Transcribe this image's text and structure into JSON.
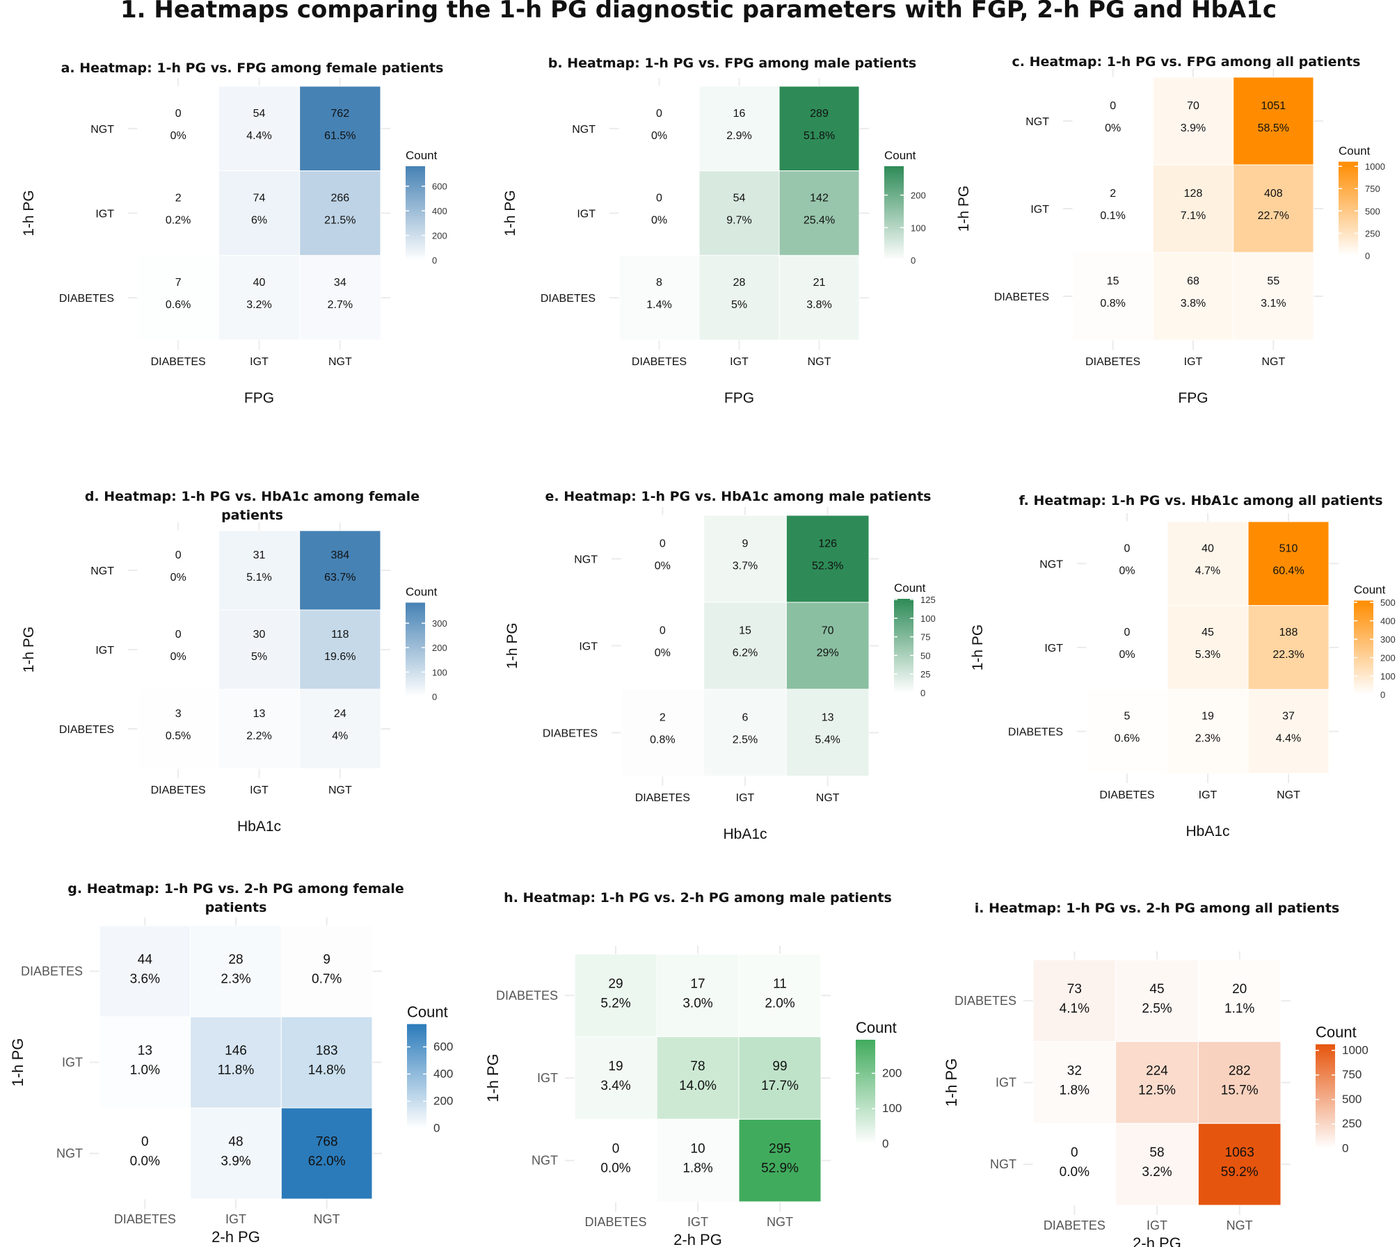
{
  "title": "1. Heatmaps comparing the 1-h PG diagnostic parameters with FGP, 2-h PG and HbA1c",
  "chart_data": [
    {
      "type": "heatmap",
      "title_lines": [
        "a. Heatmap: 1-h PG vs. FPG among female patients"
      ],
      "xlabel": "FPG",
      "ylabel": "1-h PG",
      "x_categories": [
        "DIABETES",
        "IGT",
        "NGT"
      ],
      "y_categories": [
        "NGT",
        "IGT",
        "DIABETES"
      ],
      "values": [
        [
          0,
          54,
          762
        ],
        [
          2,
          74,
          266
        ],
        [
          7,
          40,
          34
        ]
      ],
      "percent_labels": [
        [
          "0%",
          "4.4%",
          "61.5%"
        ],
        [
          "0.2%",
          "6%",
          "21.5%"
        ],
        [
          "0.6%",
          "3.2%",
          "2.7%"
        ]
      ],
      "legend_title": "Count",
      "legend_ticks": [
        0,
        200,
        400,
        600
      ],
      "scale_max": 762,
      "color_high": "#4682b4",
      "color_low": "#ffffff"
    },
    {
      "type": "heatmap",
      "title_lines": [
        "b. Heatmap: 1-h PG vs. FPG among male patients"
      ],
      "xlabel": "FPG",
      "ylabel": "1-h PG",
      "x_categories": [
        "DIABETES",
        "IGT",
        "NGT"
      ],
      "y_categories": [
        "NGT",
        "IGT",
        "DIABETES"
      ],
      "values": [
        [
          0,
          16,
          289
        ],
        [
          0,
          54,
          142
        ],
        [
          8,
          28,
          21
        ]
      ],
      "percent_labels": [
        [
          "0%",
          "2.9%",
          "51.8%"
        ],
        [
          "0%",
          "9.7%",
          "25.4%"
        ],
        [
          "1.4%",
          "5%",
          "3.8%"
        ]
      ],
      "legend_title": "Count",
      "legend_ticks": [
        0,
        100,
        200
      ],
      "scale_max": 289,
      "color_high": "#2e8b57",
      "color_low": "#ffffff"
    },
    {
      "type": "heatmap",
      "title_lines": [
        "c. Heatmap: 1-h PG vs. FPG among all patients"
      ],
      "xlabel": "FPG",
      "ylabel": "1-h PG",
      "x_categories": [
        "DIABETES",
        "IGT",
        "NGT"
      ],
      "y_categories": [
        "NGT",
        "IGT",
        "DIABETES"
      ],
      "values": [
        [
          0,
          70,
          1051
        ],
        [
          2,
          128,
          408
        ],
        [
          15,
          68,
          55
        ]
      ],
      "percent_labels": [
        [
          "0%",
          "3.9%",
          "58.5%"
        ],
        [
          "0.1%",
          "7.1%",
          "22.7%"
        ],
        [
          "0.8%",
          "3.8%",
          "3.1%"
        ]
      ],
      "legend_title": "Count",
      "legend_ticks": [
        0,
        250,
        500,
        750,
        1000
      ],
      "scale_max": 1051,
      "color_high": "#ff8c00",
      "color_low": "#ffffff"
    },
    {
      "type": "heatmap",
      "title_lines": [
        "d. Heatmap: 1-h PG vs. HbA1c among female",
        "patients"
      ],
      "xlabel": "HbA1c",
      "ylabel": "1-h PG",
      "x_categories": [
        "DIABETES",
        "IGT",
        "NGT"
      ],
      "y_categories": [
        "NGT",
        "IGT",
        "DIABETES"
      ],
      "values": [
        [
          0,
          31,
          384
        ],
        [
          0,
          30,
          118
        ],
        [
          3,
          13,
          24
        ]
      ],
      "percent_labels": [
        [
          "0%",
          "5.1%",
          "63.7%"
        ],
        [
          "0%",
          "5%",
          "19.6%"
        ],
        [
          "0.5%",
          "2.2%",
          "4%"
        ]
      ],
      "legend_title": "Count",
      "legend_ticks": [
        0,
        100,
        200,
        300
      ],
      "scale_max": 384,
      "color_high": "#4682b4",
      "color_low": "#ffffff"
    },
    {
      "type": "heatmap",
      "title_lines": [
        "e. Heatmap: 1-h PG vs. HbA1c among male patients"
      ],
      "xlabel": "HbA1c",
      "ylabel": "1-h PG",
      "x_categories": [
        "DIABETES",
        "IGT",
        "NGT"
      ],
      "y_categories": [
        "NGT",
        "IGT",
        "DIABETES"
      ],
      "values": [
        [
          0,
          9,
          126
        ],
        [
          0,
          15,
          70
        ],
        [
          2,
          6,
          13
        ]
      ],
      "percent_labels": [
        [
          "0%",
          "3.7%",
          "52.3%"
        ],
        [
          "0%",
          "6.2%",
          "29%"
        ],
        [
          "0.8%",
          "2.5%",
          "5.4%"
        ]
      ],
      "legend_title": "Count",
      "legend_ticks": [
        0,
        25,
        50,
        75,
        100,
        125
      ],
      "scale_max": 126,
      "color_high": "#2e8b57",
      "color_low": "#ffffff"
    },
    {
      "type": "heatmap",
      "title_lines": [
        "f. Heatmap: 1-h PG vs. HbA1c among all patients"
      ],
      "xlabel": "HbA1c",
      "ylabel": "1-h PG",
      "x_categories": [
        "DIABETES",
        "IGT",
        "NGT"
      ],
      "y_categories": [
        "NGT",
        "IGT",
        "DIABETES"
      ],
      "values": [
        [
          0,
          40,
          510
        ],
        [
          0,
          45,
          188
        ],
        [
          5,
          19,
          37
        ]
      ],
      "percent_labels": [
        [
          "0%",
          "4.7%",
          "60.4%"
        ],
        [
          "0%",
          "5.3%",
          "22.3%"
        ],
        [
          "0.6%",
          "2.3%",
          "4.4%"
        ]
      ],
      "legend_title": "Count",
      "legend_ticks": [
        0,
        100,
        200,
        300,
        400,
        500
      ],
      "scale_max": 510,
      "color_high": "#ff8c00",
      "color_low": "#ffffff"
    },
    {
      "type": "heatmap",
      "title_lines": [
        "g. Heatmap: 1-h PG vs. 2-h PG among female",
        "patients"
      ],
      "xlabel": "2-h PG",
      "ylabel": "1-h PG",
      "x_categories": [
        "DIABETES",
        "IGT",
        "NGT"
      ],
      "y_categories": [
        "DIABETES",
        "IGT",
        "NGT"
      ],
      "values": [
        [
          44,
          28,
          9
        ],
        [
          13,
          146,
          183
        ],
        [
          0,
          48,
          768
        ]
      ],
      "percent_labels": [
        [
          "3.6%",
          "2.3%",
          "0.7%"
        ],
        [
          "1.0%",
          "11.8%",
          "14.8%"
        ],
        [
          "0.0%",
          "3.9%",
          "62.0%"
        ]
      ],
      "legend_title": "Count",
      "legend_ticks": [
        0,
        200,
        400,
        600
      ],
      "scale_max": 768,
      "color_high": "#2b7bba",
      "color_low": "#ffffff"
    },
    {
      "type": "heatmap",
      "title_lines": [
        "h. Heatmap: 1-h PG vs. 2-h PG among male patients"
      ],
      "xlabel": "2-h PG",
      "ylabel": "1-h PG",
      "x_categories": [
        "DIABETES",
        "IGT",
        "NGT"
      ],
      "y_categories": [
        "DIABETES",
        "IGT",
        "NGT"
      ],
      "values": [
        [
          29,
          17,
          11
        ],
        [
          19,
          78,
          99
        ],
        [
          0,
          10,
          295
        ]
      ],
      "percent_labels": [
        [
          "5.2%",
          "3.0%",
          "2.0%"
        ],
        [
          "3.4%",
          "14.0%",
          "17.7%"
        ],
        [
          "0.0%",
          "1.8%",
          "52.9%"
        ]
      ],
      "legend_title": "Count",
      "legend_ticks": [
        0,
        100,
        200
      ],
      "scale_max": 295,
      "color_high": "#41ab5d",
      "color_low": "#ffffff"
    },
    {
      "type": "heatmap",
      "title_lines": [
        "i. Heatmap: 1-h PG vs. 2-h PG among all patients"
      ],
      "xlabel": "2-h PG",
      "ylabel": "1-h PG",
      "x_categories": [
        "DIABETES",
        "IGT",
        "NGT"
      ],
      "y_categories": [
        "DIABETES",
        "IGT",
        "NGT"
      ],
      "values": [
        [
          73,
          45,
          20
        ],
        [
          32,
          224,
          282
        ],
        [
          0,
          58,
          1063
        ]
      ],
      "percent_labels": [
        [
          "4.1%",
          "2.5%",
          "1.1%"
        ],
        [
          "1.8%",
          "12.5%",
          "15.7%"
        ],
        [
          "0.0%",
          "3.2%",
          "59.2%"
        ]
      ],
      "legend_title": "Count",
      "legend_ticks": [
        0,
        250,
        500,
        750,
        1000
      ],
      "scale_max": 1063,
      "color_high": "#e6550d",
      "color_low": "#ffffff"
    }
  ]
}
